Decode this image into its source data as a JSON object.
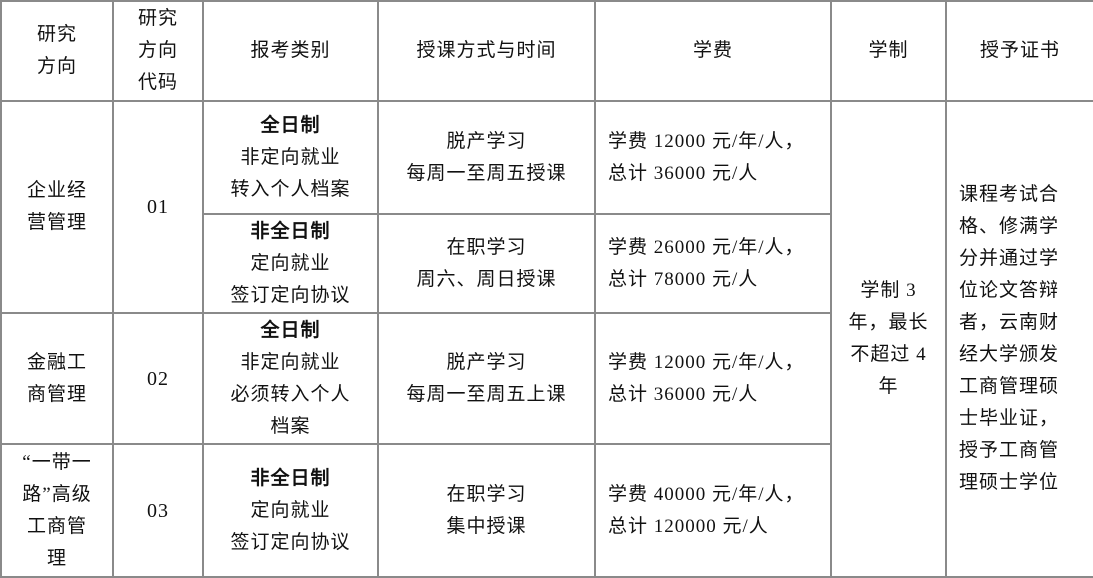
{
  "headers": [
    [
      "研究",
      "方向"
    ],
    [
      "研究",
      "方向",
      "代码"
    ],
    [
      "报考类别"
    ],
    [
      "授课方式与时间"
    ],
    [
      "学费"
    ],
    [
      "学制"
    ],
    [
      "授予证书"
    ]
  ],
  "rows": [
    {
      "direction": [
        "企业经",
        "营管理"
      ],
      "code": "01",
      "modes": [
        {
          "type": "全日制",
          "desc": [
            "非定向就业",
            "转入个人档案"
          ],
          "teaching": [
            "脱产学习",
            "每周一至周五授课"
          ],
          "fee": [
            "学费 12000 元/年/人，",
            "总计 36000 元/人"
          ]
        },
        {
          "type": "非全日制",
          "desc": [
            "定向就业",
            "签订定向协议"
          ],
          "teaching": [
            "在职学习",
            "周六、周日授课"
          ],
          "fee": [
            "学费 26000 元/年/人，",
            "总计 78000 元/人"
          ]
        }
      ]
    },
    {
      "direction": [
        "金融工",
        "商管理"
      ],
      "code": "02",
      "modes": [
        {
          "type": "全日制",
          "desc": [
            "非定向就业",
            "必须转入个人",
            "档案"
          ],
          "teaching": [
            "脱产学习",
            "每周一至周五上课"
          ],
          "fee": [
            "学费 12000 元/年/人，",
            "总计 36000 元/人"
          ]
        }
      ]
    },
    {
      "direction": [
        "“一带一",
        "路”高级",
        "工商管",
        "理"
      ],
      "code": "03",
      "modes": [
        {
          "type": "非全日制",
          "desc": [
            "定向就业",
            "签订定向协议"
          ],
          "teaching": [
            "在职学习",
            "集中授课"
          ],
          "fee": [
            "学费 40000 元/年/人，",
            "总计 120000 元/人"
          ]
        }
      ]
    }
  ],
  "duration": [
    "学制 3",
    "年，最长",
    "不超过 4",
    "年"
  ],
  "certificate": [
    "课程考试合",
    "格、修满学",
    "分并通过学",
    "位论文答辩",
    "者，云南财",
    "经大学颁发",
    "工商管理硕",
    "士毕业证，",
    "授予工商管",
    "理硕士学位"
  ]
}
